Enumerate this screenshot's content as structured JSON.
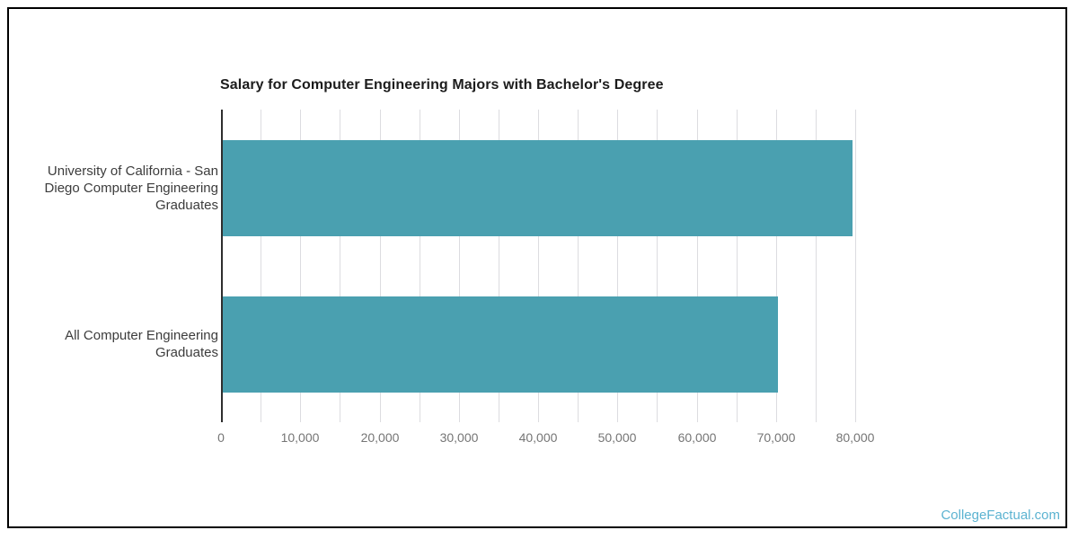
{
  "chart": {
    "title": "Salary for Computer Engineering Majors with Bachelor's Degree"
  },
  "watermark": {
    "text": "CollegeFactual.com",
    "color": "#5cb3d1"
  },
  "chart_data": {
    "type": "bar",
    "orientation": "horizontal",
    "title": "Salary for Computer Engineering Majors with Bachelor's Degree",
    "xlabel": "",
    "ylabel": "",
    "categories": [
      "University of California - San Diego Computer Engineering Graduates",
      "All Computer Engineering Graduates"
    ],
    "category_label_lines": [
      [
        "University of California - San",
        "Diego Computer Engineering",
        "Graduates"
      ],
      [
        "All Computer Engineering",
        "Graduates"
      ]
    ],
    "values": [
      79400,
      70000
    ],
    "xlim": [
      0,
      80000
    ],
    "xticks": [
      0,
      10000,
      20000,
      30000,
      40000,
      50000,
      60000,
      70000,
      80000
    ],
    "xtick_labels": [
      "0",
      "10,000",
      "20,000",
      "30,000",
      "40,000",
      "50,000",
      "60,000",
      "70,000",
      "80,000"
    ],
    "minor_grid_step": 5000,
    "grid": true,
    "legend": false,
    "bar_color": "#4aa0b0",
    "gridline_color": "#dcdce0",
    "axis_line_color": "#2e2e2e"
  }
}
